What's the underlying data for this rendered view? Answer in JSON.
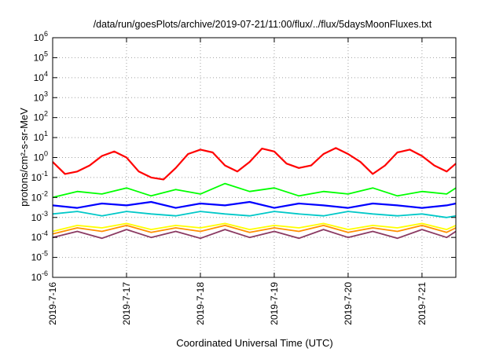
{
  "chart_data": {
    "type": "line",
    "title": "/data/run/goesPlots/archive/2019-07-21/11:00/flux/../flux/5daysMoonFluxes.txt",
    "xlabel": "Coordinated Universal Time (UTC)",
    "ylabel": "protons/cm²-s-sr-MeV",
    "y_scale": "log",
    "ylim": [
      1e-06,
      1000000.0
    ],
    "xlim": [
      "2019-07-16 00:00",
      "2019-07-21 11:00"
    ],
    "grid": true,
    "x_ticks": [
      "2019-7-16",
      "2019-7-17",
      "2019-7-18",
      "2019-7-19",
      "2019-7-20",
      "2019-7-21"
    ],
    "y_ticks": [
      {
        "base": "10",
        "exp": "-6"
      },
      {
        "base": "10",
        "exp": "-5"
      },
      {
        "base": "10",
        "exp": "-4"
      },
      {
        "base": "10",
        "exp": "-3"
      },
      {
        "base": "10",
        "exp": "-2"
      },
      {
        "base": "10",
        "exp": "-1"
      },
      {
        "base": "10",
        "exp": "0"
      },
      {
        "base": "10",
        "exp": "1"
      },
      {
        "base": "10",
        "exp": "2"
      },
      {
        "base": "10",
        "exp": "3"
      },
      {
        "base": "10",
        "exp": "4"
      },
      {
        "base": "10",
        "exp": "5"
      },
      {
        "base": "10",
        "exp": "6"
      }
    ],
    "series": [
      {
        "color": "#ff0000",
        "x": [
          "2019-07-16 00:00",
          "2019-07-16 04:00",
          "2019-07-16 08:00",
          "2019-07-16 12:00",
          "2019-07-16 16:00",
          "2019-07-16 20:00",
          "2019-07-17 00:00",
          "2019-07-17 04:00",
          "2019-07-17 08:00",
          "2019-07-17 12:00",
          "2019-07-17 16:00",
          "2019-07-17 20:00",
          "2019-07-18 00:00",
          "2019-07-18 04:00",
          "2019-07-18 08:00",
          "2019-07-18 12:00",
          "2019-07-18 16:00",
          "2019-07-18 20:00",
          "2019-07-19 00:00",
          "2019-07-19 04:00",
          "2019-07-19 08:00",
          "2019-07-19 12:00",
          "2019-07-19 16:00",
          "2019-07-19 20:00",
          "2019-07-20 00:00",
          "2019-07-20 04:00",
          "2019-07-20 08:00",
          "2019-07-20 12:00",
          "2019-07-20 16:00",
          "2019-07-20 20:00",
          "2019-07-21 00:00",
          "2019-07-21 04:00",
          "2019-07-21 08:00",
          "2019-07-21 11:00"
        ],
        "y": [
          0.6,
          0.15,
          0.2,
          0.4,
          1.2,
          2.0,
          1.0,
          0.2,
          0.1,
          0.08,
          0.3,
          1.5,
          2.5,
          1.8,
          0.4,
          0.2,
          0.6,
          2.8,
          2.0,
          0.5,
          0.3,
          0.4,
          1.5,
          3.0,
          1.5,
          0.6,
          0.15,
          0.4,
          1.8,
          2.5,
          1.2,
          0.4,
          0.2,
          0.5
        ]
      },
      {
        "color": "#00ff00",
        "x": [
          "2019-07-16 00:00",
          "2019-07-16 08:00",
          "2019-07-16 16:00",
          "2019-07-17 00:00",
          "2019-07-17 08:00",
          "2019-07-17 16:00",
          "2019-07-18 00:00",
          "2019-07-18 08:00",
          "2019-07-18 16:00",
          "2019-07-19 00:00",
          "2019-07-19 08:00",
          "2019-07-19 16:00",
          "2019-07-20 00:00",
          "2019-07-20 08:00",
          "2019-07-20 16:00",
          "2019-07-21 00:00",
          "2019-07-21 08:00",
          "2019-07-21 11:00"
        ],
        "y": [
          0.01,
          0.02,
          0.015,
          0.03,
          0.012,
          0.025,
          0.015,
          0.05,
          0.02,
          0.03,
          0.012,
          0.02,
          0.015,
          0.03,
          0.012,
          0.02,
          0.015,
          0.03
        ]
      },
      {
        "color": "#0000ff",
        "x": [
          "2019-07-16 00:00",
          "2019-07-16 08:00",
          "2019-07-16 16:00",
          "2019-07-17 00:00",
          "2019-07-17 08:00",
          "2019-07-17 16:00",
          "2019-07-18 00:00",
          "2019-07-18 08:00",
          "2019-07-18 16:00",
          "2019-07-19 00:00",
          "2019-07-19 08:00",
          "2019-07-19 16:00",
          "2019-07-20 00:00",
          "2019-07-20 08:00",
          "2019-07-20 16:00",
          "2019-07-21 00:00",
          "2019-07-21 08:00",
          "2019-07-21 11:00"
        ],
        "y": [
          0.004,
          0.003,
          0.005,
          0.004,
          0.006,
          0.003,
          0.005,
          0.004,
          0.006,
          0.003,
          0.005,
          0.004,
          0.003,
          0.005,
          0.004,
          0.003,
          0.004,
          0.005
        ]
      },
      {
        "color": "#00c8c8",
        "x": [
          "2019-07-16 00:00",
          "2019-07-16 08:00",
          "2019-07-16 16:00",
          "2019-07-17 00:00",
          "2019-07-17 08:00",
          "2019-07-17 16:00",
          "2019-07-18 00:00",
          "2019-07-18 08:00",
          "2019-07-18 16:00",
          "2019-07-19 00:00",
          "2019-07-19 08:00",
          "2019-07-19 16:00",
          "2019-07-20 00:00",
          "2019-07-20 08:00",
          "2019-07-20 16:00",
          "2019-07-21 00:00",
          "2019-07-21 08:00",
          "2019-07-21 11:00"
        ],
        "y": [
          0.0015,
          0.002,
          0.0012,
          0.002,
          0.0015,
          0.0012,
          0.002,
          0.0015,
          0.0012,
          0.002,
          0.0015,
          0.0012,
          0.002,
          0.0015,
          0.0012,
          0.0015,
          0.001,
          0.0012
        ]
      },
      {
        "color": "#ffff00",
        "x": [
          "2019-07-16 00:00",
          "2019-07-16 08:00",
          "2019-07-16 16:00",
          "2019-07-17 00:00",
          "2019-07-17 08:00",
          "2019-07-17 16:00",
          "2019-07-18 00:00",
          "2019-07-18 08:00",
          "2019-07-18 16:00",
          "2019-07-19 00:00",
          "2019-07-19 08:00",
          "2019-07-19 16:00",
          "2019-07-20 00:00",
          "2019-07-20 08:00",
          "2019-07-20 16:00",
          "2019-07-21 00:00",
          "2019-07-21 08:00",
          "2019-07-21 11:00"
        ],
        "y": [
          0.0002,
          0.0004,
          0.0003,
          0.0005,
          0.00025,
          0.0004,
          0.0003,
          0.0005,
          0.00025,
          0.0004,
          0.0003,
          0.0005,
          0.00025,
          0.0004,
          0.0003,
          0.0005,
          0.00025,
          0.0004
        ]
      },
      {
        "color": "#ff9000",
        "x": [
          "2019-07-16 00:00",
          "2019-07-16 08:00",
          "2019-07-16 16:00",
          "2019-07-17 00:00",
          "2019-07-17 08:00",
          "2019-07-17 16:00",
          "2019-07-18 00:00",
          "2019-07-18 08:00",
          "2019-07-18 16:00",
          "2019-07-19 00:00",
          "2019-07-19 08:00",
          "2019-07-19 16:00",
          "2019-07-20 00:00",
          "2019-07-20 08:00",
          "2019-07-20 16:00",
          "2019-07-21 00:00",
          "2019-07-21 08:00",
          "2019-07-21 11:00"
        ],
        "y": [
          0.00015,
          0.0003,
          0.0002,
          0.0004,
          0.00018,
          0.0003,
          0.0002,
          0.0004,
          0.00018,
          0.0003,
          0.0002,
          0.0004,
          0.00018,
          0.0003,
          0.0002,
          0.0004,
          0.00018,
          0.0003
        ]
      },
      {
        "color": "#8b3a62",
        "x": [
          "2019-07-16 00:00",
          "2019-07-16 08:00",
          "2019-07-16 16:00",
          "2019-07-17 00:00",
          "2019-07-17 08:00",
          "2019-07-17 16:00",
          "2019-07-18 00:00",
          "2019-07-18 08:00",
          "2019-07-18 16:00",
          "2019-07-19 00:00",
          "2019-07-19 08:00",
          "2019-07-19 16:00",
          "2019-07-20 00:00",
          "2019-07-20 08:00",
          "2019-07-20 16:00",
          "2019-07-21 00:00",
          "2019-07-21 08:00",
          "2019-07-21 11:00"
        ],
        "y": [
          0.0001,
          0.0002,
          9e-05,
          0.00025,
          0.0001,
          0.0002,
          9e-05,
          0.00025,
          0.0001,
          0.0002,
          9e-05,
          0.00025,
          0.0001,
          0.0002,
          9e-05,
          0.00025,
          0.0001,
          0.0002
        ]
      }
    ]
  }
}
